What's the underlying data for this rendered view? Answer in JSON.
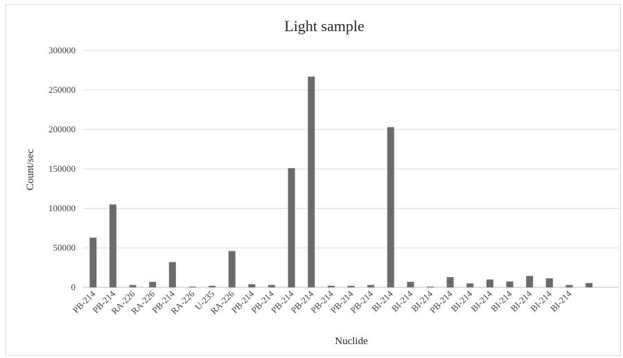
{
  "chart_data": {
    "type": "bar",
    "title": "Light sample",
    "xlabel": "Nuclide",
    "ylabel": "Count/sec",
    "ylim": [
      0,
      300000
    ],
    "yticks": [
      0,
      50000,
      100000,
      150000,
      200000,
      250000,
      300000
    ],
    "ytick_labels": [
      "0",
      "50000",
      "100000",
      "150000",
      "200000",
      "250000",
      "300000"
    ],
    "grid": true,
    "legend": "none",
    "colors": {
      "bar": "#6b6b6b",
      "grid": "#d9d9d9"
    },
    "categories": [
      "PB-214",
      "PB-214",
      "RA-226",
      "RA-226",
      "PB-214",
      "RA-226",
      "U-235",
      "RA-226",
      "PB-214",
      "PB-214",
      "PB-214",
      "PB-214",
      "PB-214",
      "PB-214",
      "PB-214",
      "BI-214",
      "BI-214",
      "BI-214",
      "PB-214",
      "BI-214",
      "BI-214",
      "BI-214",
      "BI-214",
      "BI-214",
      "BI-214",
      "",
      ""
    ],
    "values": [
      63000,
      105000,
      3000,
      7000,
      32000,
      1000,
      2000,
      46000,
      4000,
      3000,
      151000,
      267000,
      2000,
      2000,
      3000,
      203000,
      7000,
      1000,
      13000,
      5000,
      10000,
      7500,
      14500,
      11500,
      3000,
      5500,
      null
    ]
  }
}
